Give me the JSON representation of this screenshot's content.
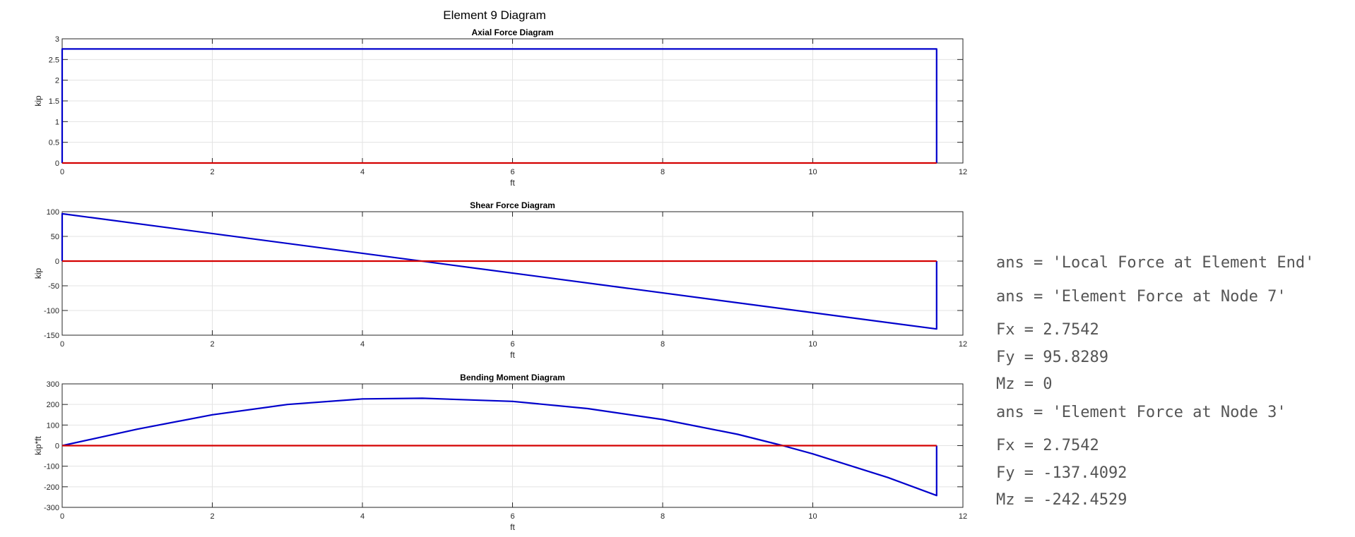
{
  "figure_title": "Element 9 Diagram",
  "chart_data": [
    {
      "type": "line",
      "title": "Axial Force Diagram",
      "xlabel": "ft",
      "ylabel": "kip",
      "xlim": [
        0,
        12
      ],
      "ylim": [
        0,
        3
      ],
      "xticks": [
        "0",
        "2",
        "4",
        "6",
        "8",
        "10",
        "12"
      ],
      "yticks": [
        "0",
        "0.5",
        "1",
        "1.5",
        "2",
        "2.5",
        "3"
      ],
      "grid": true,
      "series": [
        {
          "color": "#0000cc",
          "x": [
            0,
            0,
            11.65,
            11.65
          ],
          "y": [
            0,
            2.7542,
            2.7542,
            0
          ]
        },
        {
          "color": "#d40000",
          "x": [
            0,
            11.65
          ],
          "y": [
            0,
            0
          ]
        }
      ]
    },
    {
      "type": "line",
      "title": "Shear Force Diagram",
      "xlabel": "ft",
      "ylabel": "kip",
      "xlim": [
        0,
        12
      ],
      "ylim": [
        -150,
        100
      ],
      "xticks": [
        "0",
        "2",
        "4",
        "6",
        "8",
        "10",
        "12"
      ],
      "yticks": [
        "-150",
        "-100",
        "-50",
        "0",
        "50",
        "100"
      ],
      "grid": true,
      "series": [
        {
          "color": "#0000cc",
          "x": [
            0,
            0,
            11.65,
            11.65
          ],
          "y": [
            0,
            95.8289,
            -137.4092,
            0
          ]
        },
        {
          "color": "#d40000",
          "x": [
            0,
            11.65
          ],
          "y": [
            0,
            0
          ]
        }
      ]
    },
    {
      "type": "line",
      "title": "Bending Moment Diagram",
      "xlabel": "ft",
      "ylabel": "kip*ft",
      "xlim": [
        0,
        12
      ],
      "ylim": [
        -300,
        300
      ],
      "xticks": [
        "0",
        "2",
        "4",
        "6",
        "8",
        "10",
        "12"
      ],
      "yticks": [
        "-300",
        "-200",
        "-100",
        "0",
        "100",
        "200",
        "300"
      ],
      "grid": true,
      "series": [
        {
          "color": "#0000cc",
          "x": [
            0,
            1,
            2,
            3,
            4,
            4.8,
            6,
            7,
            8,
            9,
            9.6,
            10,
            11,
            11.65,
            11.65
          ],
          "y": [
            0,
            80,
            150,
            200,
            227,
            230,
            215,
            180,
            127,
            55,
            0,
            -40,
            -155,
            -242.4529,
            0
          ]
        },
        {
          "color": "#d40000",
          "x": [
            0,
            11.65
          ],
          "y": [
            0,
            0
          ]
        }
      ]
    }
  ],
  "console": [
    "ans = 'Local Force at Element End'",
    "ans = 'Element Force at Node 7'",
    "Fx = 2.7542",
    "Fy = 95.8289",
    "Mz = 0",
    "ans = 'Element Force at Node 3'",
    "Fx = 2.7542",
    "Fy = -137.4092",
    "Mz = -242.4529"
  ]
}
